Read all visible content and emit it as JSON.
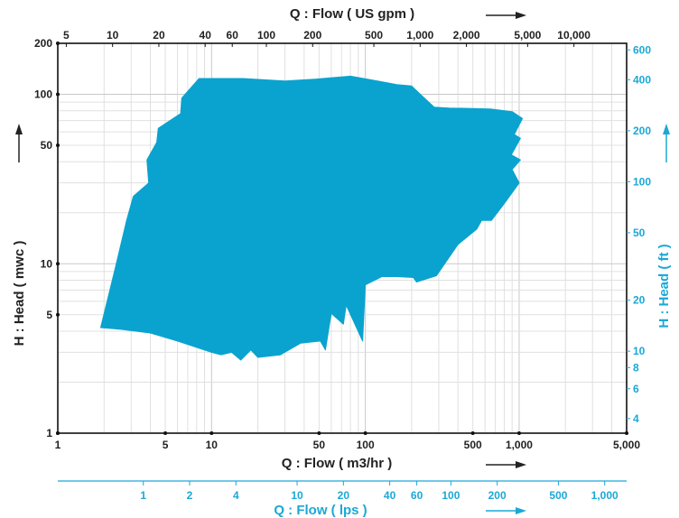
{
  "chart_data": {
    "type": "area",
    "title": "",
    "x_axis": {
      "label": "Q : Flow ( m3/hr )",
      "scale": "log",
      "range": [
        1,
        5000
      ],
      "tick_labels": [
        {
          "v": 1,
          "t": "1"
        },
        {
          "v": 5,
          "t": "5"
        },
        {
          "v": 10,
          "t": "10"
        },
        {
          "v": 50,
          "t": "50"
        },
        {
          "v": 100,
          "t": "100"
        },
        {
          "v": 500,
          "t": "500"
        },
        {
          "v": 1000,
          "t": "1,000"
        },
        {
          "v": 5000,
          "t": "5,000"
        }
      ]
    },
    "x_axis_top": {
      "label": "Q : Flow ( US gpm )",
      "factor": 4.403,
      "tick_labels": [
        {
          "v": 5,
          "t": "5"
        },
        {
          "v": 10,
          "t": "10"
        },
        {
          "v": 20,
          "t": "20"
        },
        {
          "v": 40,
          "t": "40"
        },
        {
          "v": 60,
          "t": "60"
        },
        {
          "v": 100,
          "t": "100"
        },
        {
          "v": 200,
          "t": "200"
        },
        {
          "v": 500,
          "t": "500"
        },
        {
          "v": 1000,
          "t": "1,000"
        },
        {
          "v": 2000,
          "t": "2,000"
        },
        {
          "v": 5000,
          "t": "5,000"
        },
        {
          "v": 10000,
          "t": "10,000"
        }
      ]
    },
    "x_axis_bottom2": {
      "label": "Q : Flow ( lps )",
      "factor": 0.2778,
      "tick_labels": [
        {
          "v": 1,
          "t": "1"
        },
        {
          "v": 2,
          "t": "2"
        },
        {
          "v": 4,
          "t": "4"
        },
        {
          "v": 10,
          "t": "10"
        },
        {
          "v": 20,
          "t": "20"
        },
        {
          "v": 40,
          "t": "40"
        },
        {
          "v": 60,
          "t": "60"
        },
        {
          "v": 100,
          "t": "100"
        },
        {
          "v": 200,
          "t": "200"
        },
        {
          "v": 500,
          "t": "500"
        },
        {
          "v": 1000,
          "t": "1,000"
        }
      ]
    },
    "y_axis": {
      "label": "H : Head ( mwc )",
      "scale": "log",
      "range": [
        1,
        200
      ],
      "tick_labels": [
        {
          "v": 1,
          "t": "1"
        },
        {
          "v": 5,
          "t": "5"
        },
        {
          "v": 10,
          "t": "10"
        },
        {
          "v": 50,
          "t": "50"
        },
        {
          "v": 100,
          "t": "100"
        },
        {
          "v": 200,
          "t": "200"
        }
      ]
    },
    "y_axis_right": {
      "label": "H : Head ( ft )",
      "factor": 3.281,
      "tick_labels": [
        {
          "v": 4,
          "t": "4"
        },
        {
          "v": 6,
          "t": "6"
        },
        {
          "v": 8,
          "t": "8"
        },
        {
          "v": 10,
          "t": "10"
        },
        {
          "v": 20,
          "t": "20"
        },
        {
          "v": 50,
          "t": "50"
        },
        {
          "v": 100,
          "t": "100"
        },
        {
          "v": 200,
          "t": "200"
        },
        {
          "v": 400,
          "t": "400"
        },
        {
          "v": 600,
          "t": "600"
        }
      ]
    },
    "grid": true,
    "series": [
      {
        "color": "#0aa3cf",
        "boundary": [
          [
            1.9,
            4.2
          ],
          [
            2.4,
            10
          ],
          [
            2.8,
            18
          ],
          [
            3.1,
            25
          ],
          [
            3.9,
            30
          ],
          [
            3.8,
            41
          ],
          [
            4.4,
            52
          ],
          [
            4.5,
            63
          ],
          [
            6.3,
            77
          ],
          [
            6.4,
            95
          ],
          [
            8.3,
            124
          ],
          [
            16,
            124
          ],
          [
            30,
            120
          ],
          [
            48,
            123
          ],
          [
            80,
            128
          ],
          [
            120,
            120
          ],
          [
            160,
            114
          ],
          [
            200,
            112
          ],
          [
            220,
            103
          ],
          [
            280,
            84
          ],
          [
            350,
            83
          ],
          [
            650,
            82
          ],
          [
            900,
            79
          ],
          [
            1050,
            72
          ],
          [
            930,
            58
          ],
          [
            1020,
            55
          ],
          [
            890,
            44
          ],
          [
            1020,
            41
          ],
          [
            900,
            36
          ],
          [
            1000,
            30
          ],
          [
            810,
            23
          ],
          [
            660,
            18
          ],
          [
            570,
            18
          ],
          [
            530,
            16
          ],
          [
            400,
            13
          ],
          [
            290,
            8.5
          ],
          [
            215,
            7.8
          ],
          [
            205,
            8.3
          ],
          [
            160,
            8.4
          ],
          [
            128,
            8.4
          ],
          [
            100,
            7.5
          ],
          [
            96,
            3.5
          ],
          [
            75,
            5.7
          ],
          [
            72,
            4.4
          ],
          [
            60,
            5.1
          ],
          [
            55,
            3.1
          ],
          [
            51,
            3.5
          ],
          [
            38,
            3.4
          ],
          [
            28,
            2.9
          ],
          [
            20,
            2.8
          ],
          [
            18,
            3.1
          ],
          [
            15.5,
            2.7
          ],
          [
            13.5,
            3.0
          ],
          [
            11.5,
            2.9
          ],
          [
            10,
            3.0
          ],
          [
            6,
            3.5
          ],
          [
            4,
            3.9
          ],
          [
            2.6,
            4.1
          ],
          [
            1.9,
            4.2
          ]
        ]
      }
    ],
    "legend": "none"
  }
}
